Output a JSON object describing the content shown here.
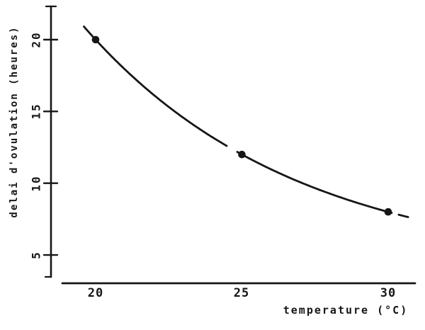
{
  "chart_data": {
    "type": "line",
    "title": "",
    "xlabel": "temperature (°C)",
    "ylabel": "delai d'ovulation (heures)",
    "x": [
      20,
      25,
      30
    ],
    "y": [
      20,
      12,
      8
    ],
    "series": [
      {
        "name": "delai d'ovulation",
        "x": [
          20,
          25,
          30
        ],
        "y": [
          20,
          12,
          8
        ]
      }
    ],
    "xticks": [
      20,
      25,
      30
    ],
    "yticks": [
      5,
      10,
      15,
      20
    ],
    "xlim": [
      19,
      31
    ],
    "ylim": [
      4,
      21.5
    ],
    "grid": false,
    "legend": false,
    "marker": "filled-circle",
    "line_color": "#161616",
    "background": "#ffffff",
    "curve_style": "smooth decreasing exponential-decay curve through the three points"
  }
}
